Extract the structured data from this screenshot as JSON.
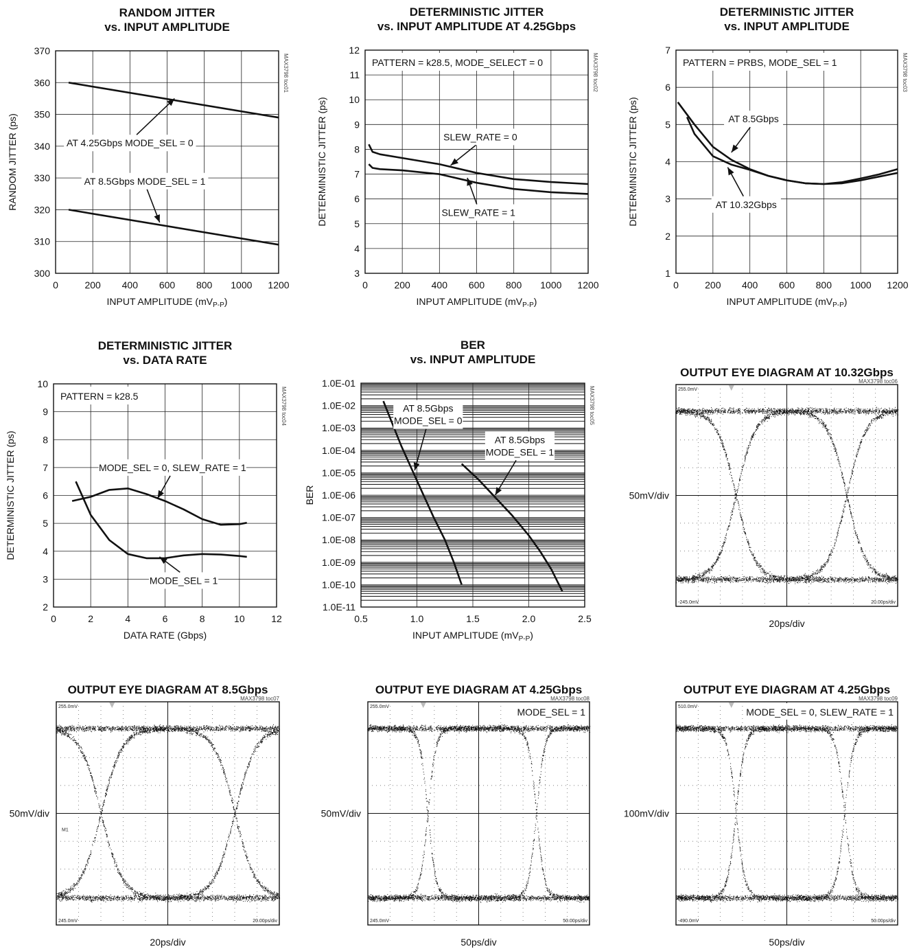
{
  "chart_data": [
    {
      "id": "c1",
      "type": "line",
      "title": [
        "RANDOM JITTER",
        "vs. INPUT AMPLITUDE"
      ],
      "xlabel": "INPUT AMPLITUDE (mVP-P)",
      "ylabel": "RANDOM JITTER (ps)",
      "xlim": [
        0,
        1200
      ],
      "ylim": [
        300,
        370
      ],
      "xticks": [
        0,
        200,
        400,
        600,
        800,
        1000,
        1200
      ],
      "yticks": [
        300,
        310,
        320,
        330,
        340,
        350,
        360,
        370
      ],
      "ref": "MAX3798 toc01",
      "grid": true,
      "series": [
        {
          "x": [
            70,
            1200
          ],
          "y": [
            360,
            349
          ]
        },
        {
          "x": [
            70,
            1200
          ],
          "y": [
            320,
            309
          ]
        }
      ],
      "annotations": [
        {
          "text": "AT 4.25Gbps MODE_SEL = 0",
          "x": 400,
          "y": 341,
          "ax": 640,
          "ay": 355
        },
        {
          "text": "AT 8.5Gbps MODE_SEL = 1",
          "x": 480,
          "y": 329,
          "ax": 560,
          "ay": 316
        }
      ]
    },
    {
      "id": "c2",
      "type": "line",
      "title": [
        "DETERMINISTIC JITTER",
        "vs. INPUT AMPLITUDE AT 4.25Gbps"
      ],
      "xlabel": "INPUT AMPLITUDE (mVP-P)",
      "ylabel": "DETERMINISTIC JITTER (ps)",
      "xlim": [
        0,
        1200
      ],
      "ylim": [
        3,
        12
      ],
      "xticks": [
        0,
        200,
        400,
        600,
        800,
        1000,
        1200
      ],
      "yticks": [
        3,
        4,
        5,
        6,
        7,
        8,
        9,
        10,
        11,
        12
      ],
      "ref": "MAX3798 toc02",
      "grid": true,
      "box_text": "PATTERN = k28.5, MODE_SELECT = 0",
      "series": [
        {
          "name": "SLEW_RATE = 0",
          "x": [
            20,
            40,
            80,
            200,
            400,
            600,
            800,
            1000,
            1200
          ],
          "y": [
            8.2,
            7.9,
            7.8,
            7.65,
            7.4,
            7.05,
            6.8,
            6.68,
            6.6
          ]
        },
        {
          "name": "SLEW_RATE = 1",
          "x": [
            20,
            40,
            80,
            200,
            400,
            600,
            800,
            1000,
            1200
          ],
          "y": [
            7.4,
            7.25,
            7.2,
            7.15,
            7.0,
            6.65,
            6.4,
            6.27,
            6.2
          ]
        }
      ],
      "annotations": [
        {
          "text": "SLEW_RATE = 0",
          "x": 620,
          "y": 8.5,
          "ax": 460,
          "ay": 7.35
        },
        {
          "text": "SLEW_RATE = 1",
          "x": 610,
          "y": 5.45,
          "ax": 550,
          "ay": 6.85
        }
      ]
    },
    {
      "id": "c3",
      "type": "line",
      "title": [
        "DETERMINISTIC JITTER",
        "vs. INPUT AMPLITUDE"
      ],
      "xlabel": "INPUT AMPLITUDE (mVP-P)",
      "ylabel": "DETERMINISTIC JITTER (ps)",
      "xlim": [
        0,
        1200
      ],
      "ylim": [
        1,
        7
      ],
      "xticks": [
        0,
        200,
        400,
        600,
        800,
        1000,
        1200
      ],
      "yticks": [
        1,
        2,
        3,
        4,
        5,
        6,
        7
      ],
      "ref": "MAX3798 toc03",
      "grid": true,
      "box_text": "PATTERN = PRBS, MODE_SEL = 1",
      "series": [
        {
          "name": "AT 8.5Gbps",
          "x": [
            10,
            100,
            200,
            300,
            400,
            500,
            600,
            700,
            800,
            900,
            1000,
            1100,
            1200
          ],
          "y": [
            5.6,
            5.0,
            4.4,
            4.05,
            3.8,
            3.62,
            3.5,
            3.42,
            3.4,
            3.45,
            3.55,
            3.66,
            3.8
          ]
        },
        {
          "name": "AT 10.32Gbps",
          "x": [
            60,
            100,
            200,
            300,
            400,
            500,
            600,
            700,
            800,
            900,
            1000,
            1100,
            1200
          ],
          "y": [
            5.2,
            4.75,
            4.15,
            3.92,
            3.78,
            3.62,
            3.5,
            3.42,
            3.4,
            3.42,
            3.5,
            3.6,
            3.7
          ]
        }
      ],
      "annotations": [
        {
          "text": "AT 8.5Gbps",
          "x": 420,
          "y": 5.15,
          "ax": 300,
          "ay": 4.25
        },
        {
          "text": "AT 10.32Gbps",
          "x": 380,
          "y": 2.85,
          "ax": 280,
          "ay": 3.85
        }
      ]
    },
    {
      "id": "c4",
      "type": "line",
      "title": [
        "DETERMINISTIC JITTER",
        "vs. DATA RATE"
      ],
      "xlabel": "DATA RATE (Gbps)",
      "ylabel": "DETERMINISTIC JITTER (ps)",
      "xlim": [
        0,
        12
      ],
      "ylim": [
        2,
        10
      ],
      "xticks": [
        0,
        2,
        4,
        6,
        8,
        10,
        12
      ],
      "yticks": [
        2,
        3,
        4,
        5,
        6,
        7,
        8,
        9,
        10
      ],
      "ref": "MAX3798 toc04",
      "grid": true,
      "box_text": "PATTERN = k28.5",
      "series": [
        {
          "name": "MODE_SEL = 0, SLEW_RATE = 1",
          "x": [
            1.0,
            2.0,
            3.0,
            4.0,
            5.0,
            6.0,
            7.0,
            8.0,
            9.0,
            10.0,
            10.4
          ],
          "y": [
            5.8,
            5.95,
            6.2,
            6.25,
            6.05,
            5.8,
            5.5,
            5.15,
            4.95,
            4.97,
            5.02
          ]
        },
        {
          "name": "MODE_SEL = 1",
          "x": [
            1.2,
            2.0,
            3.0,
            4.0,
            5.0,
            6.0,
            7.0,
            8.0,
            9.0,
            10.0,
            10.4
          ],
          "y": [
            6.5,
            5.3,
            4.4,
            3.9,
            3.75,
            3.75,
            3.85,
            3.9,
            3.88,
            3.83,
            3.8
          ]
        }
      ],
      "annotations": [
        {
          "text": "MODE_SEL = 0, SLEW_RATE = 1",
          "x": 6.4,
          "y": 7.0,
          "ax": 5.6,
          "ay": 5.9
        },
        {
          "text": "MODE_SEL = 1",
          "x": 7.0,
          "y": 2.95,
          "ax": 5.7,
          "ay": 3.8
        }
      ]
    },
    {
      "id": "c5",
      "type": "line",
      "title": [
        "BER",
        "vs. INPUT AMPLITUDE"
      ],
      "xlabel": "INPUT AMPLITUDE (mVP-P)",
      "ylabel": "BER",
      "xlim": [
        0.5,
        2.5
      ],
      "ylog": true,
      "ylim_exp": [
        -11,
        -1
      ],
      "xticks": [
        "0.5",
        "1.0",
        "1.5",
        "2.0",
        "2.5"
      ],
      "yticks": [
        "1.0E-11",
        "1.0E-10",
        "1.0E-09",
        "1.0E-08",
        "1.0E-07",
        "1.0E-06",
        "1.0E-05",
        "1.0E-04",
        "1.0E-03",
        "1.0E-02",
        "1.0E-01"
      ],
      "ref": "MAX3798 toc05",
      "grid": true,
      "series": [
        {
          "name": "AT 8.5Gbps MODE_SEL = 0",
          "x": [
            0.7,
            0.78,
            0.86,
            0.95,
            1.05,
            1.15,
            1.25,
            1.33,
            1.4
          ],
          "yexp": [
            -1.8,
            -2.8,
            -3.8,
            -4.8,
            -5.9,
            -7.0,
            -8.0,
            -9.0,
            -10.0
          ]
        },
        {
          "name": "AT 8.5Gbps MODE_SEL = 1",
          "x": [
            1.4,
            1.55,
            1.7,
            1.85,
            2.0,
            2.1,
            2.2,
            2.3
          ],
          "yexp": [
            -4.6,
            -5.3,
            -6.1,
            -6.9,
            -7.8,
            -8.5,
            -9.3,
            -10.3
          ]
        }
      ],
      "annotations": [
        {
          "text": [
            "AT 8.5Gbps",
            "MODE_SEL = 0"
          ],
          "x": 1.1,
          "y": -2.4,
          "ax": 0.98,
          "ay": -4.9
        },
        {
          "text": [
            "AT 8.5Gbps",
            "MODE_SEL = 1"
          ],
          "x": 1.92,
          "y": -3.8,
          "ax": 1.7,
          "ay": -6.0
        }
      ]
    },
    {
      "id": "c6",
      "type": "eye",
      "title": [
        "OUTPUT EYE DIAGRAM AT 10.32Gbps"
      ],
      "ref": "MAX3798 toc06",
      "ylabel": "50mV/div",
      "xlabel": "20ps/div",
      "top_label": "255.0mV",
      "bottom_label": "-245.0mV",
      "time_label": "20.00ps/div",
      "crossings": [
        0.27,
        0.77
      ],
      "transition": 0.24
    },
    {
      "id": "c7",
      "type": "eye",
      "title": [
        "OUTPUT EYE DIAGRAM AT 8.5Gbps"
      ],
      "ref": "MAX3798 toc07",
      "ylabel": "50mV/div",
      "xlabel": "20ps/div",
      "top_label": "255.0mV",
      "bottom_label": "245.0mV",
      "time_label": "20.00ps/div",
      "marker": "M1",
      "crossings": [
        0.2,
        0.8
      ],
      "transition": 0.26
    },
    {
      "id": "c8",
      "type": "eye",
      "title": [
        "OUTPUT EYE DIAGRAM AT 4.25Gbps"
      ],
      "ref": "MAX3798 toc08",
      "ylabel": "50mV/div",
      "xlabel": "50ps/div",
      "top_label": "255.0mV",
      "bottom_label": "245.0mV",
      "time_label": "50.00ps/div",
      "box_text": "MODE_SEL = 1",
      "crossings": [
        0.27,
        0.76
      ],
      "transition": 0.1
    },
    {
      "id": "c9",
      "type": "eye",
      "title": [
        "OUTPUT EYE DIAGRAM AT 4.25Gbps"
      ],
      "ref": "MAX3798 toc09",
      "ylabel": "100mV/div",
      "xlabel": "50ps/div",
      "top_label": "510.0mV",
      "bottom_label": "-490.0mV",
      "time_label": "50.00ps/div",
      "box_text": "MODE_SEL = 0, SLEW_RATE = 1",
      "crossings": [
        0.27,
        0.76
      ],
      "transition": 0.11
    }
  ]
}
